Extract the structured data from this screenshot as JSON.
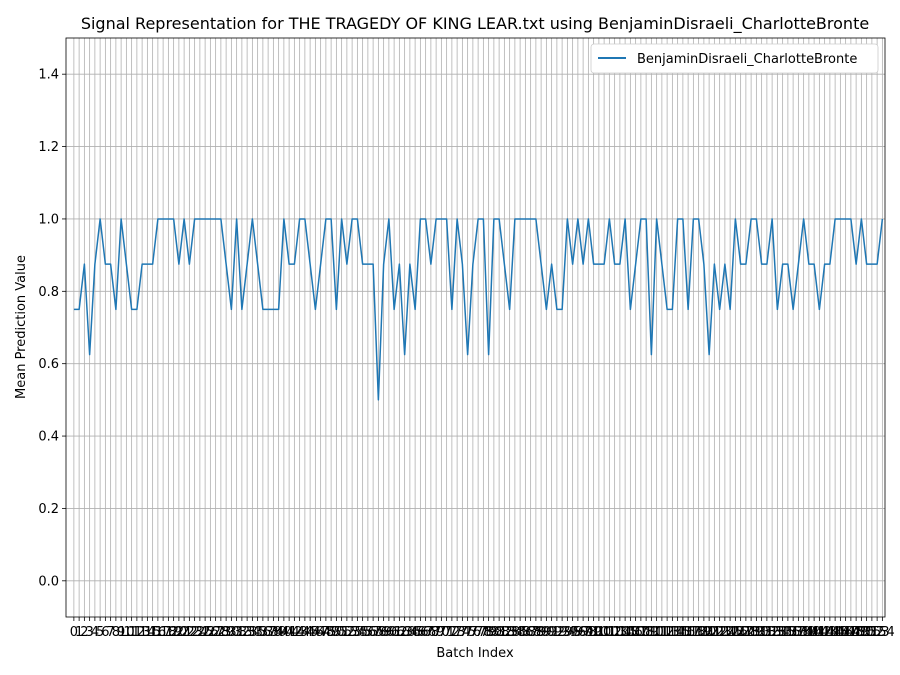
{
  "chart_data": {
    "type": "line",
    "title": "Signal Representation for THE TRAGEDY OF KING LEAR.txt using BenjaminDisraeli_CharlotteBronte",
    "xlabel": "Batch Index",
    "ylabel": "Mean Prediction Value",
    "ylim": [
      -0.1,
      1.5
    ],
    "xlim": [
      -1.5,
      154.5
    ],
    "yticks": [
      "0.0",
      "0.2",
      "0.4",
      "0.6",
      "0.8",
      "1.0",
      "1.2",
      "1.4"
    ],
    "ytick_values": [
      0.0,
      0.2,
      0.4,
      0.6,
      0.8,
      1.0,
      1.2,
      1.4
    ],
    "grid": true,
    "legend_position": "upper right",
    "series": [
      {
        "name": "BenjaminDisraeli_CharlotteBronte",
        "color": "#1f77b4",
        "x_start": 0,
        "values": [
          0.75,
          0.75,
          0.875,
          0.625,
          0.875,
          1.0,
          0.875,
          0.875,
          0.75,
          1.0,
          0.875,
          0.75,
          0.75,
          0.875,
          0.875,
          0.875,
          1.0,
          1.0,
          1.0,
          1.0,
          0.875,
          1.0,
          0.875,
          1.0,
          1.0,
          1.0,
          1.0,
          1.0,
          1.0,
          0.875,
          0.75,
          1.0,
          0.75,
          0.875,
          1.0,
          0.875,
          0.75,
          0.75,
          0.75,
          0.75,
          1.0,
          0.875,
          0.875,
          1.0,
          1.0,
          0.875,
          0.75,
          0.875,
          1.0,
          1.0,
          0.75,
          1.0,
          0.875,
          1.0,
          1.0,
          0.875,
          0.875,
          0.875,
          0.5,
          0.875,
          1.0,
          0.75,
          0.875,
          0.625,
          0.875,
          0.75,
          1.0,
          1.0,
          0.875,
          1.0,
          1.0,
          1.0,
          0.75,
          1.0,
          0.875,
          0.625,
          0.875,
          1.0,
          1.0,
          0.625,
          1.0,
          1.0,
          0.875,
          0.75,
          1.0,
          1.0,
          1.0,
          1.0,
          1.0,
          0.875,
          0.75,
          0.875,
          0.75,
          0.75,
          1.0,
          0.875,
          1.0,
          0.875,
          1.0,
          0.875,
          0.875,
          0.875,
          1.0,
          0.875,
          0.875,
          1.0,
          0.75,
          0.875,
          1.0,
          1.0,
          0.625,
          1.0,
          0.875,
          0.75,
          0.75,
          1.0,
          1.0,
          0.75,
          1.0,
          1.0,
          0.875,
          0.625,
          0.875,
          0.75,
          0.875,
          0.75,
          1.0,
          0.875,
          0.875,
          1.0,
          1.0,
          0.875,
          0.875,
          1.0,
          0.75,
          0.875,
          0.875,
          0.75,
          0.875,
          1.0,
          0.875,
          0.875,
          0.75,
          0.875,
          0.875,
          1.0,
          1.0,
          1.0,
          1.0,
          0.875,
          1.0,
          0.875,
          0.875,
          0.875,
          1.0
        ]
      }
    ]
  }
}
